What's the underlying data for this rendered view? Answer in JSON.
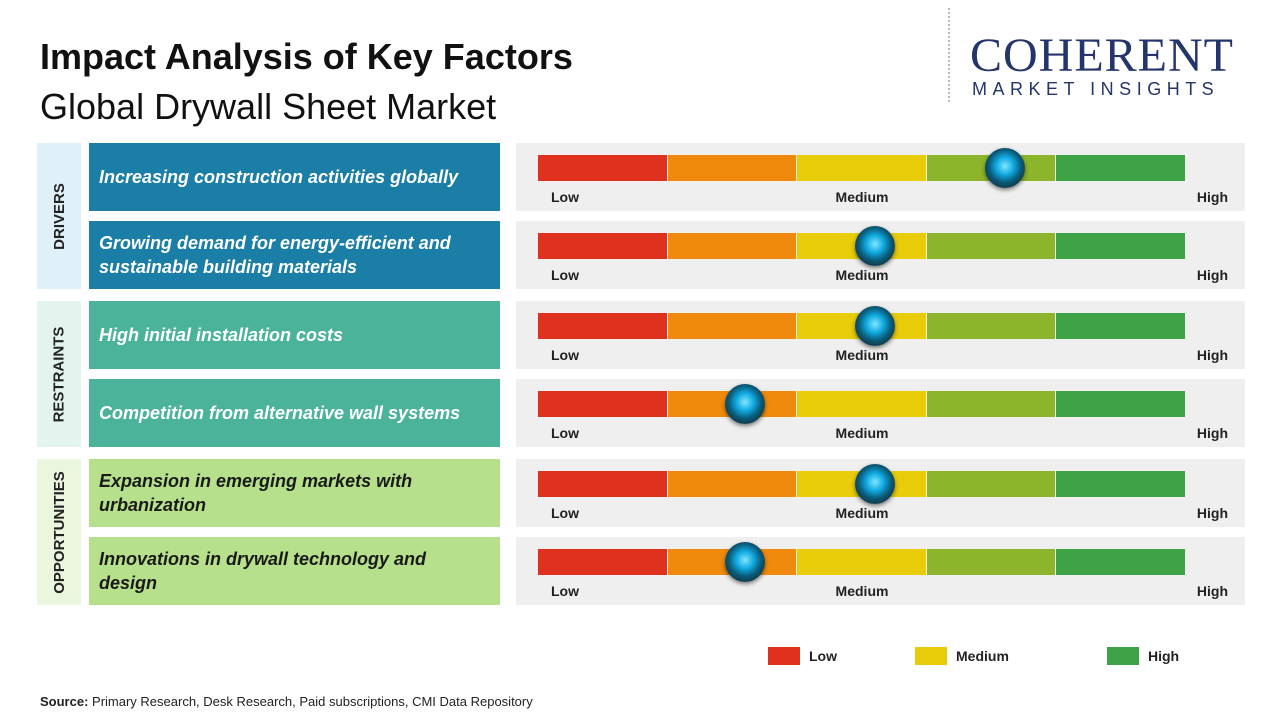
{
  "header": {
    "title": "Impact Analysis of Key Factors",
    "subtitle": "Global Drywall Sheet Market"
  },
  "logo": {
    "name": "COHERENT",
    "tagline": "MARKET INSIGHTS"
  },
  "chart_data": {
    "type": "impact",
    "xlim": [
      0,
      5
    ],
    "scale_labels": [
      "Low",
      "Medium",
      "High"
    ],
    "segment_colors": [
      "#e0301e",
      "#f08a0c",
      "#e8cc0a",
      "#8db52b",
      "#3ea346"
    ],
    "groups": [
      {
        "name": "DRIVERS",
        "color": "#1b7ea6",
        "light": "#e0f0f8",
        "text_color": "#ffffff",
        "factors": [
          "Increasing construction activities globally",
          "Growing demand for energy-efficient and sustainable building materials"
        ],
        "values": [
          3.6,
          2.6
        ]
      },
      {
        "name": "RESTRAINTS",
        "color": "#4bb39a",
        "light": "#e3f3ee",
        "text_color": "#ffffff",
        "factors": [
          "High initial installation costs",
          "Competition from alternative wall systems"
        ],
        "values": [
          2.6,
          1.6
        ]
      },
      {
        "name": "OPPORTUNITIES",
        "color": "#b6e08c",
        "light": "#eaf6dd",
        "text_color": "#1a1a1a",
        "factors": [
          "Expansion in emerging markets with urbanization",
          "Innovations in drywall technology and design"
        ],
        "values": [
          2.6,
          1.6
        ]
      }
    ],
    "legend": [
      {
        "name": "Low",
        "color": "#e0301e"
      },
      {
        "name": "Medium",
        "color": "#e8cc0a"
      },
      {
        "name": "High",
        "color": "#3ea346"
      }
    ]
  },
  "source": {
    "label": "Source:",
    "text": "Primary Research, Desk Research, Paid subscriptions, CMI Data Repository"
  }
}
